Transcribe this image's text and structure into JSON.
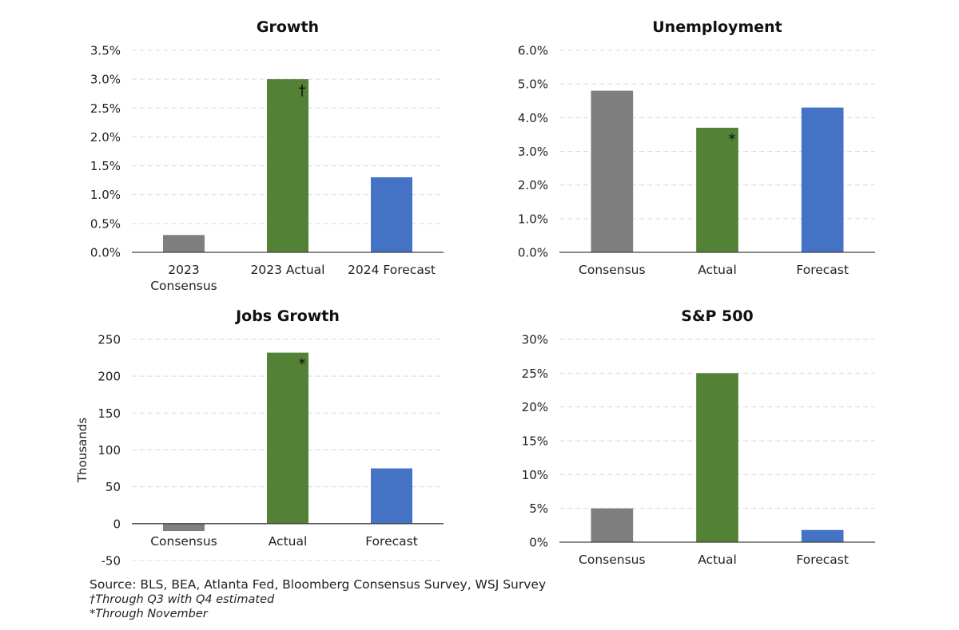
{
  "chart_data": [
    {
      "type": "bar",
      "title": "Growth",
      "categories": [
        "2023\nConsensus",
        "2023 Actual",
        "2024 Forecast"
      ],
      "values": [
        0.3,
        3.0,
        1.3
      ],
      "colors": [
        "#7f7f7f",
        "#538135",
        "#4472c4"
      ],
      "annotations": [
        "",
        "†",
        ""
      ],
      "ylim": [
        0,
        3.5
      ],
      "yticks": [
        0,
        0.5,
        1.0,
        1.5,
        2.0,
        2.5,
        3.0,
        3.5
      ],
      "ytick_labels": [
        "0.0%",
        "0.5%",
        "1.0%",
        "1.5%",
        "2.0%",
        "2.5%",
        "3.0%",
        "3.5%"
      ],
      "ylabel": "",
      "grid": true
    },
    {
      "type": "bar",
      "title": "Unemployment",
      "categories": [
        "Consensus",
        "Actual",
        "Forecast"
      ],
      "values": [
        4.8,
        3.7,
        4.3
      ],
      "colors": [
        "#7f7f7f",
        "#538135",
        "#4472c4"
      ],
      "annotations": [
        "",
        "*",
        ""
      ],
      "ylim": [
        0,
        6
      ],
      "yticks": [
        0,
        1,
        2,
        3,
        4,
        5,
        6
      ],
      "ytick_labels": [
        "0.0%",
        "1.0%",
        "2.0%",
        "3.0%",
        "4.0%",
        "5.0%",
        "6.0%"
      ],
      "ylabel": "",
      "grid": true
    },
    {
      "type": "bar",
      "title": "Jobs Growth",
      "categories": [
        "Consensus",
        "Actual",
        "Forecast"
      ],
      "values": [
        -10,
        232,
        75
      ],
      "colors": [
        "#7f7f7f",
        "#538135",
        "#4472c4"
      ],
      "annotations": [
        "",
        "*",
        ""
      ],
      "ylim": [
        -50,
        250
      ],
      "yticks": [
        -50,
        0,
        50,
        100,
        150,
        200,
        250
      ],
      "ytick_labels": [
        "-50",
        "0",
        "50",
        "100",
        "150",
        "200",
        "250"
      ],
      "ylabel": "Thousands",
      "grid": true
    },
    {
      "type": "bar",
      "title": "S&P 500",
      "categories": [
        "Consensus",
        "Actual",
        "Forecast"
      ],
      "values": [
        5,
        25,
        1.8
      ],
      "colors": [
        "#7f7f7f",
        "#538135",
        "#4472c4"
      ],
      "annotations": [
        "",
        "",
        ""
      ],
      "ylim": [
        0,
        30
      ],
      "yticks": [
        0,
        5,
        10,
        15,
        20,
        25,
        30
      ],
      "ytick_labels": [
        "0%",
        "5%",
        "10%",
        "15%",
        "20%",
        "25%",
        "30%"
      ],
      "ylabel": "",
      "grid": true
    }
  ],
  "notes": {
    "source": "Source: BLS, BEA, Atlanta Fed, Bloomberg Consensus Survey, WSJ Survey",
    "dagger": "†Through Q3 with Q4 estimated",
    "asterisk": "*Through November"
  }
}
